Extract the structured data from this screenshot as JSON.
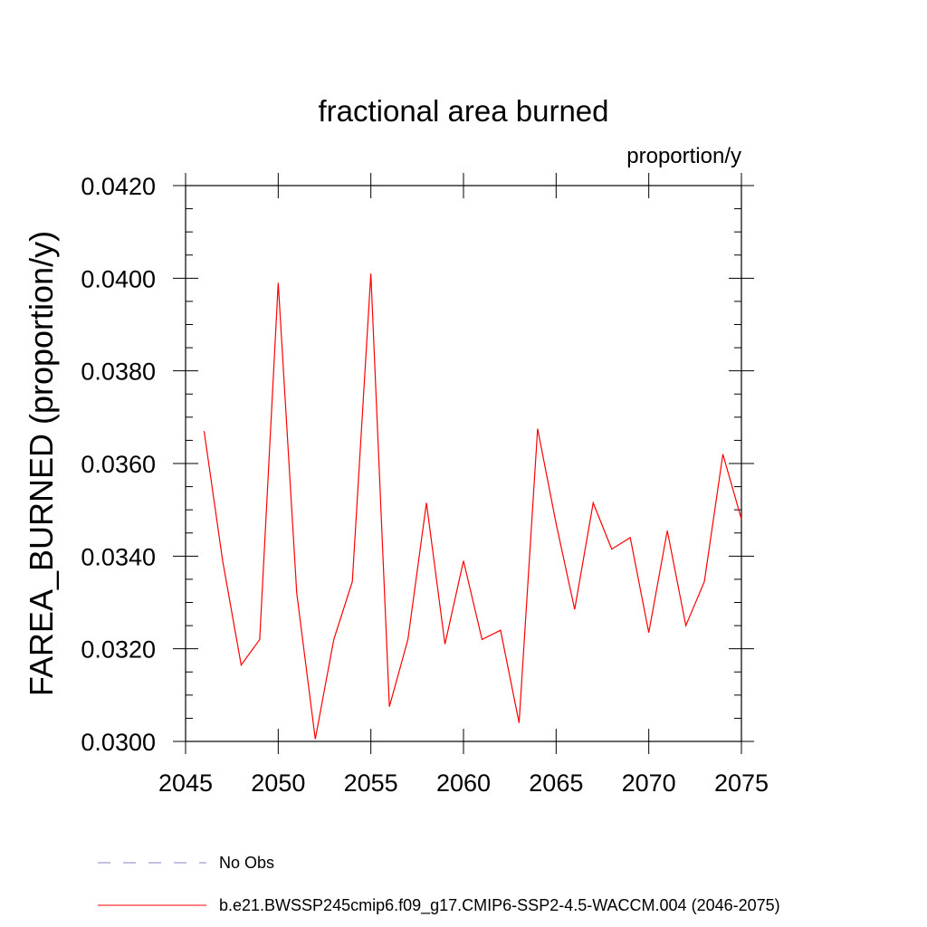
{
  "chart_data": {
    "type": "line",
    "title": "fractional area burned",
    "units_label": "proportion/y",
    "xlabel": "",
    "ylabel": "FAREA_BURNED  (proportion/y)",
    "xlim": [
      2045,
      2075
    ],
    "ylim": [
      0.03,
      0.042
    ],
    "x_ticks": [
      2045,
      2050,
      2055,
      2060,
      2065,
      2070,
      2075
    ],
    "x_tick_labels": [
      "2045",
      "2050",
      "2055",
      "2060",
      "2065",
      "2070",
      "2075"
    ],
    "y_ticks": [
      0.03,
      0.032,
      0.034,
      0.036,
      0.038,
      0.04,
      0.042
    ],
    "y_tick_labels": [
      "0.0300",
      "0.0320",
      "0.0340",
      "0.0360",
      "0.0380",
      "0.0400",
      "0.0420"
    ],
    "grid": false,
    "series": [
      {
        "name": "b.e21.BWSSP245cmip6.f09_g17.CMIP6-SSP2-4.5-WACCM.004 (2046-2075)",
        "color": "#ff0000",
        "x": [
          2046,
          2047,
          2048,
          2049,
          2050,
          2051,
          2052,
          2053,
          2054,
          2055,
          2056,
          2057,
          2058,
          2059,
          2060,
          2061,
          2062,
          2063,
          2064,
          2065,
          2066,
          2067,
          2068,
          2069,
          2070,
          2071,
          2072,
          2073,
          2074,
          2075
        ],
        "values": [
          0.0367,
          0.0339,
          0.03165,
          0.0322,
          0.0399,
          0.0332,
          0.03005,
          0.0322,
          0.03345,
          0.0401,
          0.03075,
          0.0322,
          0.03515,
          0.0321,
          0.0339,
          0.0322,
          0.0324,
          0.0304,
          0.03675,
          0.0347,
          0.03285,
          0.03515,
          0.03415,
          0.0344,
          0.03235,
          0.03455,
          0.0325,
          0.03345,
          0.0362,
          0.0348
        ]
      }
    ],
    "legend": {
      "placement": "bottom",
      "entries": [
        {
          "label": "No Obs",
          "style": "dashed",
          "color": "#8a7fc0"
        },
        {
          "label": "b.e21.BWSSP245cmip6.f09_g17.CMIP6-SSP2-4.5-WACCM.004 (2046-2075)",
          "style": "solid",
          "color": "#ff0000"
        }
      ]
    }
  }
}
